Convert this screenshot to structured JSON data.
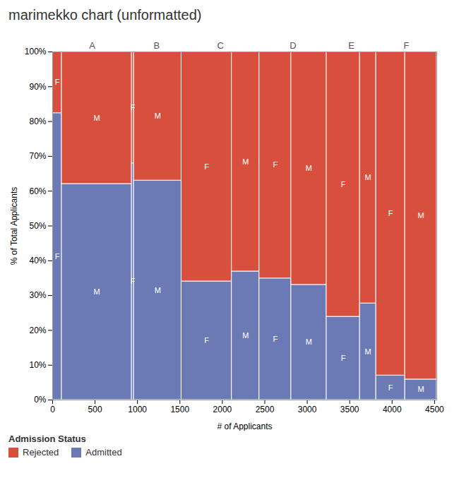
{
  "chart_data": {
    "type": "marimekko",
    "title": "marimekko chart (unformatted)",
    "xlabel": "# of Applicants",
    "ylabel": "% of Total Applicants",
    "groups": [
      "A",
      "A",
      "B",
      "B",
      "C",
      "C",
      "D",
      "D",
      "E",
      "E",
      "F",
      "F"
    ],
    "categories": [
      "F",
      "M",
      "F",
      "M",
      "F",
      "M",
      "F",
      "M",
      "F",
      "M",
      "F",
      "M"
    ],
    "widths": [
      108,
      825,
      25,
      560,
      593,
      325,
      375,
      417,
      393,
      191,
      341,
      373
    ],
    "series": [
      {
        "name": "Rejected",
        "color": "#d94f3d",
        "values": [
          0.1759259259,
          0.3793939394,
          0.32,
          0.3696428571,
          0.6593591906,
          0.6307692308,
          0.6506666667,
          0.6690647482,
          0.7608142494,
          0.722513089,
          0.9296187683,
          0.9410187668
        ]
      },
      {
        "name": "Admitted",
        "color": "#6b7ab5",
        "values": [
          0.8240740741,
          0.6206060606,
          0.68,
          0.6303571429,
          0.3406408094,
          0.3692307692,
          0.3493333333,
          0.3309352518,
          0.2391857506,
          0.277486911,
          0.0703812317,
          0.0589812332
        ]
      }
    ],
    "stacked": true,
    "xlim": [
      0,
      4526
    ],
    "xticks": [
      0,
      500,
      1000,
      1500,
      2000,
      2500,
      3000,
      3500,
      4000,
      4500
    ],
    "ylim": [
      0,
      1
    ],
    "yticks": [
      {
        "value": 0,
        "label": "0%"
      },
      {
        "value": 0.1,
        "label": "10%"
      },
      {
        "value": 0.2,
        "label": "20%"
      },
      {
        "value": 0.3,
        "label": "30%"
      },
      {
        "value": 0.4,
        "label": "40%"
      },
      {
        "value": 0.5,
        "label": "50%"
      },
      {
        "value": 0.6,
        "label": "60%"
      },
      {
        "value": 0.7,
        "label": "70%"
      },
      {
        "value": 0.8,
        "label": "80%"
      },
      {
        "value": 0.9,
        "label": "90%"
      },
      {
        "value": 1,
        "label": "100%"
      }
    ],
    "grid": false,
    "legend": "bottom",
    "legend_title": "Admission Status"
  }
}
